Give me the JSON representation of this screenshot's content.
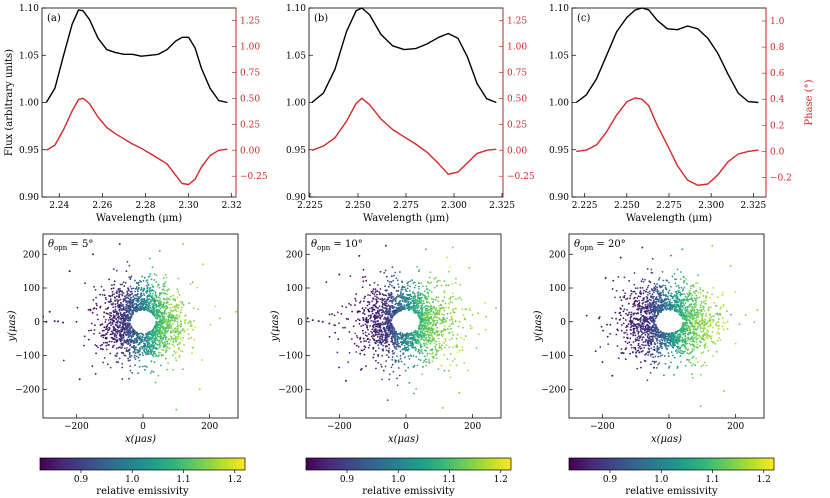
{
  "figure": {
    "colorbar_label": "relative emissivity",
    "colormap": "viridis"
  },
  "chart_data": [
    {
      "type": "line",
      "panel": "(a)",
      "xlabel": "Wavelength (μm)",
      "ylabel_left": "Flux (arbitrary units)",
      "ylabel_right": "",
      "xlim": [
        2.232,
        2.322
      ],
      "ylim_left": [
        0.9,
        1.1
      ],
      "ylim_right": [
        -0.45,
        1.37
      ],
      "xticks": [
        2.24,
        2.26,
        2.28,
        2.3,
        2.32
      ],
      "xtick_labels": [
        "2.24",
        "2.26",
        "2.28",
        "2.30",
        "2.32"
      ],
      "yticks_left": [
        0.9,
        0.95,
        1.0,
        1.05,
        1.1
      ],
      "yticks_left_labels": [
        "0.90",
        "0.95",
        "1.00",
        "1.05",
        "1.10"
      ],
      "yticks_right": [
        -0.25,
        0.0,
        0.25,
        0.5,
        0.75,
        1.0,
        1.25
      ],
      "yticks_right_labels": [
        "−0.25",
        "0.00",
        "0.25",
        "0.50",
        "0.75",
        "1.00",
        "1.25"
      ],
      "series": [
        {
          "name": "Flux",
          "axis": "left",
          "color": "#000000",
          "x": [
            2.234,
            2.238,
            2.242,
            2.246,
            2.249,
            2.251,
            2.254,
            2.258,
            2.262,
            2.266,
            2.27,
            2.274,
            2.278,
            2.282,
            2.286,
            2.29,
            2.294,
            2.297,
            2.3,
            2.303,
            2.306,
            2.31,
            2.314,
            2.318
          ],
          "values": [
            1.0,
            1.015,
            1.05,
            1.083,
            1.098,
            1.097,
            1.088,
            1.068,
            1.056,
            1.053,
            1.051,
            1.051,
            1.049,
            1.05,
            1.051,
            1.056,
            1.065,
            1.069,
            1.069,
            1.058,
            1.036,
            1.015,
            1.002,
            1.0
          ]
        },
        {
          "name": "Phase",
          "axis": "right",
          "color": "#d62728",
          "x": [
            2.234,
            2.238,
            2.242,
            2.246,
            2.249,
            2.251,
            2.254,
            2.258,
            2.262,
            2.266,
            2.27,
            2.274,
            2.278,
            2.282,
            2.286,
            2.29,
            2.294,
            2.297,
            2.3,
            2.303,
            2.306,
            2.31,
            2.314,
            2.318
          ],
          "values": [
            0.0,
            0.05,
            0.2,
            0.38,
            0.49,
            0.5,
            0.45,
            0.32,
            0.22,
            0.16,
            0.11,
            0.06,
            0.02,
            -0.03,
            -0.08,
            -0.13,
            -0.24,
            -0.32,
            -0.33,
            -0.28,
            -0.16,
            -0.05,
            0.0,
            0.01
          ]
        }
      ]
    },
    {
      "type": "line",
      "panel": "(b)",
      "xlabel": "Wavelength (μm)",
      "ylabel_left": "",
      "ylabel_right": "",
      "xlim": [
        2.2245,
        2.3255
      ],
      "ylim_left": [
        0.9,
        1.1
      ],
      "ylim_right": [
        -0.45,
        1.37
      ],
      "xticks": [
        2.225,
        2.25,
        2.275,
        2.3,
        2.325
      ],
      "xtick_labels": [
        "2.225",
        "2.250",
        "2.275",
        "2.300",
        "2.325"
      ],
      "yticks_left": [
        0.9,
        0.95,
        1.0,
        1.05,
        1.1
      ],
      "yticks_left_labels": [
        "0.90",
        "0.95",
        "1.00",
        "1.05",
        "1.10"
      ],
      "yticks_right": [
        -0.25,
        0.0,
        0.25,
        0.5,
        0.75,
        1.0,
        1.25
      ],
      "yticks_right_labels": [
        "−0.25",
        "0.00",
        "0.25",
        "0.50",
        "0.75",
        "1.00",
        "1.25"
      ],
      "series": [
        {
          "name": "Flux",
          "axis": "left",
          "color": "#000000",
          "x": [
            2.226,
            2.232,
            2.238,
            2.244,
            2.249,
            2.252,
            2.256,
            2.262,
            2.268,
            2.274,
            2.28,
            2.286,
            2.292,
            2.297,
            2.302,
            2.307,
            2.312,
            2.317,
            2.322
          ],
          "values": [
            1.0,
            1.01,
            1.035,
            1.075,
            1.097,
            1.1,
            1.093,
            1.072,
            1.06,
            1.056,
            1.057,
            1.062,
            1.069,
            1.073,
            1.068,
            1.048,
            1.02,
            1.004,
            1.0
          ]
        },
        {
          "name": "Phase",
          "axis": "right",
          "color": "#d62728",
          "x": [
            2.226,
            2.232,
            2.238,
            2.244,
            2.249,
            2.252,
            2.256,
            2.262,
            2.268,
            2.274,
            2.28,
            2.286,
            2.292,
            2.297,
            2.302,
            2.307,
            2.312,
            2.317,
            2.322
          ],
          "values": [
            0.0,
            0.04,
            0.12,
            0.28,
            0.45,
            0.5,
            0.44,
            0.3,
            0.2,
            0.13,
            0.06,
            -0.02,
            -0.13,
            -0.23,
            -0.21,
            -0.12,
            -0.03,
            0.0,
            0.01
          ]
        }
      ]
    },
    {
      "type": "line",
      "panel": "(c)",
      "xlabel": "Wavelength (μm)",
      "ylabel_left": "",
      "ylabel_right": "Phase (°)",
      "xlim": [
        2.2175,
        2.3325
      ],
      "ylim_left": [
        0.9,
        1.1
      ],
      "ylim_right": [
        -0.35,
        1.1
      ],
      "xticks": [
        2.225,
        2.25,
        2.275,
        2.3,
        2.325
      ],
      "xtick_labels": [
        "2.225",
        "2.250",
        "2.275",
        "2.300",
        "2.325"
      ],
      "yticks_left": [
        0.9,
        0.95,
        1.0,
        1.05,
        1.1
      ],
      "yticks_left_labels": [
        "0.90",
        "0.95",
        "1.00",
        "1.05",
        "1.10"
      ],
      "yticks_right": [
        -0.2,
        0.0,
        0.2,
        0.4,
        0.6,
        0.8,
        1.0
      ],
      "yticks_right_labels": [
        "−0.2",
        "0.0",
        "0.2",
        "0.4",
        "0.6",
        "0.8",
        "1.0"
      ],
      "series": [
        {
          "name": "Flux",
          "axis": "left",
          "color": "#000000",
          "x": [
            2.22,
            2.226,
            2.232,
            2.238,
            2.244,
            2.25,
            2.255,
            2.259,
            2.263,
            2.268,
            2.274,
            2.28,
            2.286,
            2.292,
            2.298,
            2.304,
            2.31,
            2.316,
            2.322,
            2.328
          ],
          "values": [
            1.0,
            1.008,
            1.025,
            1.05,
            1.075,
            1.09,
            1.098,
            1.1,
            1.098,
            1.087,
            1.078,
            1.077,
            1.081,
            1.078,
            1.068,
            1.052,
            1.03,
            1.01,
            1.001,
            1.0
          ]
        },
        {
          "name": "Phase",
          "axis": "right",
          "color": "#d62728",
          "x": [
            2.22,
            2.226,
            2.232,
            2.238,
            2.244,
            2.25,
            2.255,
            2.259,
            2.263,
            2.268,
            2.274,
            2.28,
            2.286,
            2.292,
            2.298,
            2.304,
            2.31,
            2.316,
            2.322,
            2.328
          ],
          "values": [
            0.0,
            0.01,
            0.05,
            0.15,
            0.28,
            0.38,
            0.41,
            0.4,
            0.35,
            0.2,
            0.05,
            -0.11,
            -0.22,
            -0.26,
            -0.25,
            -0.18,
            -0.08,
            -0.02,
            0.0,
            0.01
          ]
        }
      ]
    },
    {
      "type": "scatter",
      "panel": "θ_opn = 5°",
      "title_symbol": "θ",
      "title_sub": "opn",
      "title_rest": " = 5°",
      "xlabel": "x(μas)",
      "ylabel": "y(μas)",
      "xlim": [
        -300,
        285
      ],
      "ylim": [
        -285,
        260
      ],
      "xticks": [
        -200,
        0,
        200
      ],
      "xtick_labels": [
        "−200",
        "0",
        "200"
      ],
      "yticks": [
        -200,
        -100,
        0,
        100,
        200
      ],
      "ytick_labels": [
        "−200",
        "−100",
        "0",
        "100",
        "200"
      ],
      "ring": {
        "inner_radius": 38,
        "core_sigma": 55,
        "n_points": 1900,
        "seed": 11
      },
      "x_stretch": 1.0,
      "outliers": [
        [
          -300,
          15
        ],
        [
          -290,
          0
        ],
        [
          -265,
          2
        ],
        [
          -255,
          1
        ],
        [
          -240,
          -2
        ],
        [
          -280,
          30
        ],
        [
          -220,
          150
        ],
        [
          -70,
          230
        ],
        [
          50,
          210
        ],
        [
          100,
          -260
        ],
        [
          120,
          230
        ],
        [
          -190,
          -170
        ],
        [
          230,
          10
        ],
        [
          280,
          30
        ],
        [
          -150,
          200
        ],
        [
          180,
          170
        ],
        [
          170,
          -200
        ]
      ],
      "emissivity_range": [
        0.82,
        1.22
      ]
    },
    {
      "type": "scatter",
      "panel": "θ_opn = 10°",
      "title_symbol": "θ",
      "title_sub": "opn",
      "title_rest": " = 10°",
      "xlabel": "x(μas)",
      "ylabel": "y(μas)",
      "xlim": [
        -300,
        285
      ],
      "ylim": [
        -285,
        260
      ],
      "xticks": [
        -200,
        0,
        200
      ],
      "xtick_labels": [
        "−200",
        "0",
        "200"
      ],
      "yticks": [
        -200,
        -100,
        0,
        100,
        200
      ],
      "ytick_labels": [
        "−200",
        "−100",
        "0",
        "100",
        "200"
      ],
      "ring": {
        "inner_radius": 38,
        "core_sigma": 58,
        "n_points": 1900,
        "seed": 23
      },
      "x_stretch": 1.12,
      "outliers": [
        [
          -295,
          10
        ],
        [
          -280,
          5
        ],
        [
          -262,
          2
        ],
        [
          -250,
          0
        ],
        [
          -230,
          -5
        ],
        [
          -200,
          140
        ],
        [
          -60,
          225
        ],
        [
          60,
          215
        ],
        [
          110,
          -255
        ],
        [
          140,
          220
        ],
        [
          -180,
          -175
        ],
        [
          240,
          15
        ],
        [
          270,
          40
        ],
        [
          -140,
          195
        ],
        [
          190,
          160
        ],
        [
          160,
          -210
        ]
      ],
      "emissivity_range": [
        0.82,
        1.22
      ]
    },
    {
      "type": "scatter",
      "panel": "θ_opn = 20°",
      "title_symbol": "θ",
      "title_sub": "opn",
      "title_rest": " = 20°",
      "xlabel": "x(μas)",
      "ylabel": "y(μas)",
      "xlim": [
        -300,
        285
      ],
      "ylim": [
        -285,
        260
      ],
      "xticks": [
        -200,
        0,
        200
      ],
      "xtick_labels": [
        "−200",
        "0",
        "200"
      ],
      "yticks": [
        -200,
        -100,
        0,
        100,
        200
      ],
      "ytick_labels": [
        "−200",
        "−100",
        "0",
        "100",
        "200"
      ],
      "ring": {
        "inner_radius": 38,
        "core_sigma": 57,
        "n_points": 1900,
        "seed": 37
      },
      "x_stretch": 1.08,
      "outliers": [
        [
          -210,
          10
        ],
        [
          -190,
          130
        ],
        [
          -80,
          220
        ],
        [
          40,
          215
        ],
        [
          95,
          -250
        ],
        [
          130,
          225
        ],
        [
          -170,
          -160
        ],
        [
          230,
          20
        ],
        [
          265,
          35
        ],
        [
          -145,
          190
        ],
        [
          185,
          165
        ],
        [
          165,
          -205
        ]
      ],
      "emissivity_range": [
        0.82,
        1.22
      ]
    },
    {
      "type": "heatmap",
      "role": "colorbar",
      "label": "relative emissivity",
      "colormap": "viridis",
      "range": [
        0.82,
        1.22
      ],
      "ticks": [
        0.9,
        1.0,
        1.1,
        1.2
      ],
      "tick_labels": [
        "0.9",
        "1.0",
        "1.1",
        "1.2"
      ]
    }
  ]
}
